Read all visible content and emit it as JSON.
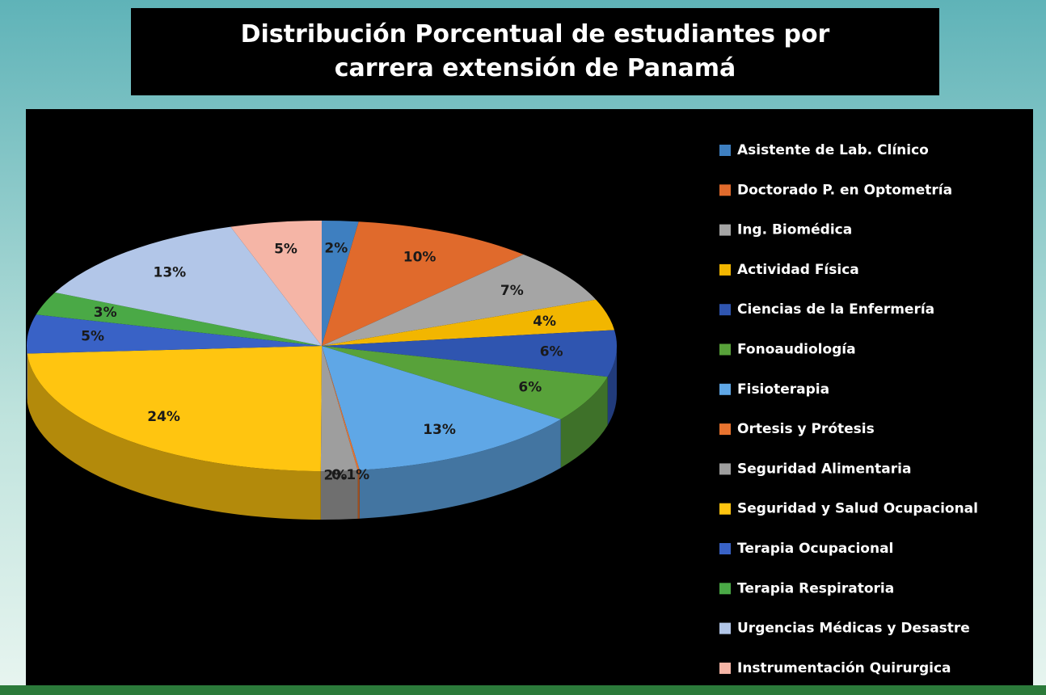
{
  "chart_data": {
    "type": "pie",
    "title": "Distribución Porcentual de estudiantes por carrera extensión de Panamá",
    "categories": [
      "Asistente de Lab. Clínico",
      "Doctorado P. en Optometría",
      "Ing. Biomédica",
      "Actividad Física",
      "Ciencias de la Enfermería",
      "Fonoaudiología",
      "Fisioterapia",
      "Ortesis y Prótesis",
      "Seguridad Alimentaria",
      "Seguridad y Salud Ocupacional",
      "Terapia Ocupacional",
      "Terapia Respiratoria",
      "Urgencias Médicas y Desastre",
      "Instrumentación Quirurgica"
    ],
    "values": [
      2,
      10,
      7,
      4,
      6,
      6,
      13,
      0.1,
      2,
      24,
      5,
      3,
      13,
      5
    ],
    "value_labels": [
      "2%",
      "10%",
      "7%",
      "4%",
      "6%",
      "6%",
      "13%",
      "0.1%",
      "2%",
      "24%",
      "5%",
      "3%",
      "13%",
      "5%"
    ],
    "colors": [
      "#3e7fc0",
      "#e06a2c",
      "#a5a5a5",
      "#f2b600",
      "#2f55b0",
      "#58a23a",
      "#5fa7e6",
      "#e8732f",
      "#9e9e9e",
      "#ffc510",
      "#3962c6",
      "#4aa946",
      "#b2c6e8",
      "#f5b5a6"
    ],
    "legend": "right"
  }
}
